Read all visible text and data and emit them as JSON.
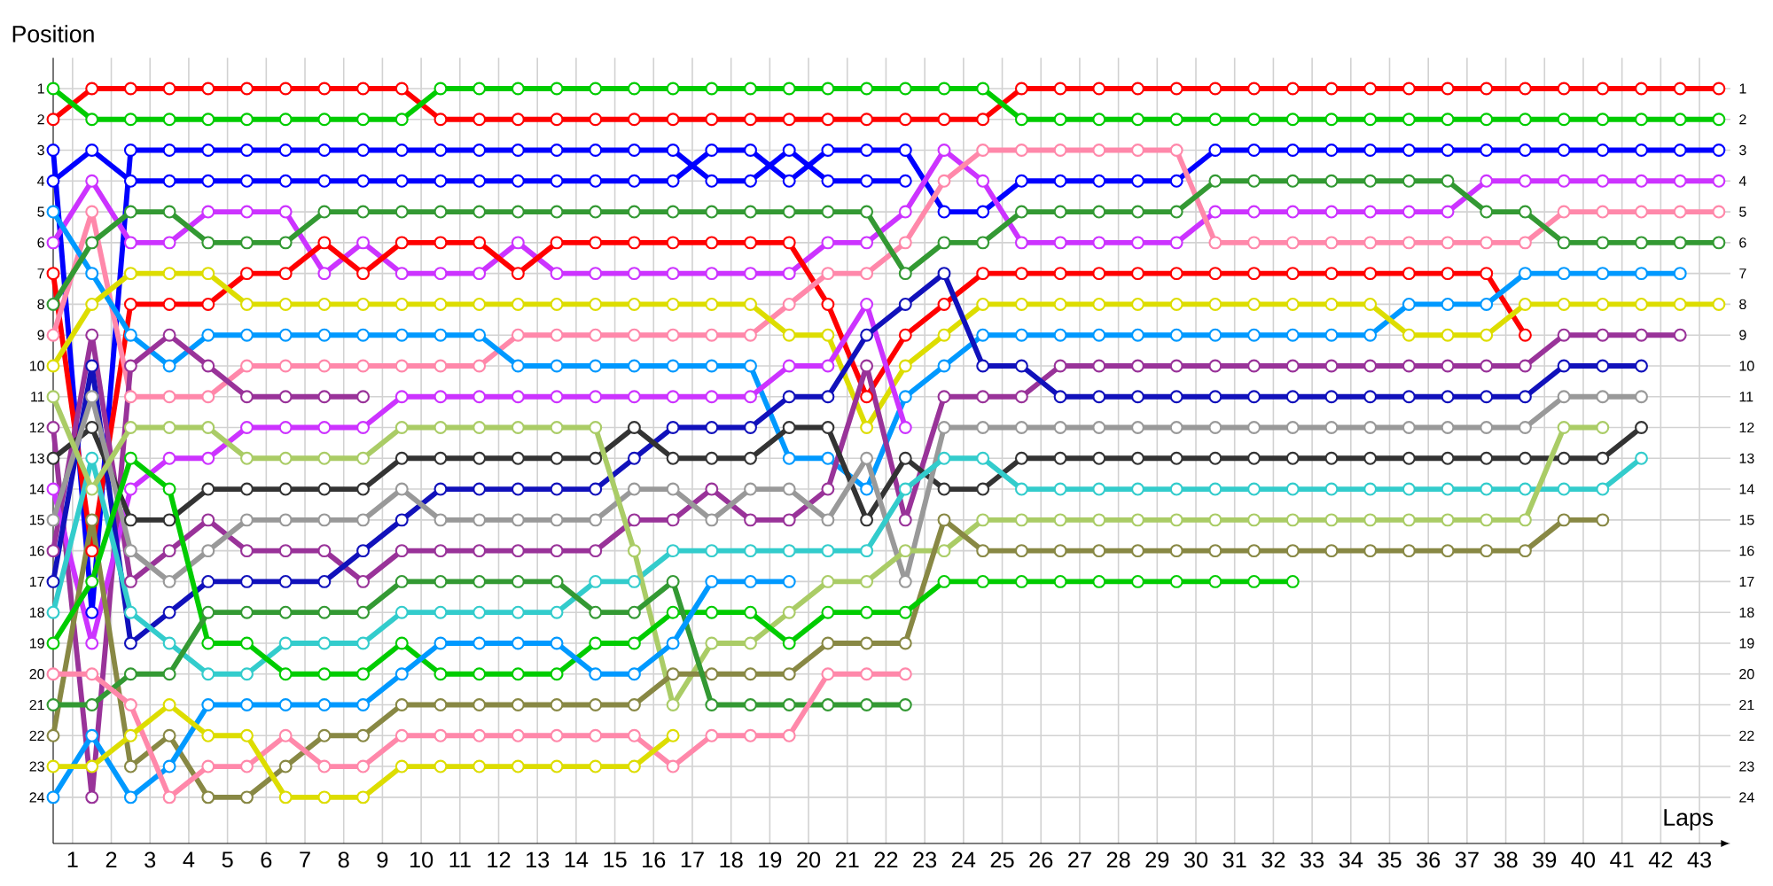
{
  "chart_data": {
    "type": "line",
    "xlabel": "Laps",
    "ylabel": "Position",
    "marker": "circle",
    "line_style": "solid",
    "grid": true,
    "x": [
      0.5,
      1.5,
      2.5,
      3.5,
      4.5,
      5.5,
      6.5,
      7.5,
      8.5,
      9.5,
      10.5,
      11.5,
      12.5,
      13.5,
      14.5,
      15.5,
      16.5,
      17.5,
      18.5,
      19.5,
      20.5,
      21.5,
      22.5,
      23.5,
      24.5,
      25.5,
      26.5,
      27.5,
      28.5,
      29.5,
      30.5,
      31.5,
      32.5,
      33.5,
      34.5,
      35.5,
      36.5,
      37.5,
      38.5,
      39.5,
      40.5,
      41.5,
      42.5,
      43.5
    ],
    "xlim": [
      0.5,
      43.8
    ],
    "xticks": [
      1,
      2,
      3,
      4,
      5,
      6,
      7,
      8,
      9,
      10,
      11,
      12,
      13,
      14,
      15,
      16,
      17,
      18,
      19,
      20,
      21,
      22,
      23,
      24,
      25,
      26,
      27,
      28,
      29,
      30,
      31,
      32,
      33,
      34,
      35,
      36,
      37,
      38,
      39,
      40,
      41,
      42,
      43
    ],
    "ylim": [
      25.5,
      0
    ],
    "yticks": [
      1,
      2,
      3,
      4,
      5,
      6,
      7,
      8,
      9,
      10,
      11,
      12,
      13,
      14,
      15,
      16,
      17,
      18,
      19,
      20,
      21,
      22,
      23,
      24
    ],
    "y2lim": [
      25.5,
      0
    ],
    "y2ticks": [
      1,
      2,
      3,
      4,
      5,
      6,
      7,
      8,
      9,
      10,
      11,
      12,
      13,
      14,
      15,
      16,
      17,
      18,
      19,
      20,
      21,
      22,
      23,
      24
    ],
    "series": [
      {
        "color": "#ff0000",
        "values": [
          2,
          1,
          1,
          1,
          1,
          1,
          1,
          1,
          1,
          1,
          2,
          2,
          2,
          2,
          2,
          2,
          2,
          2,
          2,
          2,
          2,
          2,
          2,
          2,
          2,
          1,
          1,
          1,
          1,
          1,
          1,
          1,
          1,
          1,
          1,
          1,
          1,
          1,
          1,
          1,
          1,
          1,
          1,
          1
        ]
      },
      {
        "color": "#00cc00",
        "values": [
          1,
          2,
          2,
          2,
          2,
          2,
          2,
          2,
          2,
          2,
          1,
          1,
          1,
          1,
          1,
          1,
          1,
          1,
          1,
          1,
          1,
          1,
          1,
          1,
          1,
          2,
          2,
          2,
          2,
          2,
          2,
          2,
          2,
          2,
          2,
          2,
          2,
          2,
          2,
          2,
          2,
          2,
          2,
          2
        ]
      },
      {
        "color": "#0000ff",
        "values": [
          3,
          18,
          3,
          3,
          3,
          3,
          3,
          3,
          3,
          3,
          3,
          3,
          3,
          3,
          3,
          3,
          3,
          4,
          4,
          3,
          4,
          4,
          4,
          null,
          null,
          null,
          null,
          null,
          null,
          null,
          null,
          null,
          null,
          null,
          null,
          null,
          null,
          null,
          null,
          null,
          null,
          null,
          null,
          null
        ]
      },
      {
        "color": "#0000ff",
        "values": [
          4,
          3,
          4,
          4,
          4,
          4,
          4,
          4,
          4,
          4,
          4,
          4,
          4,
          4,
          4,
          4,
          4,
          3,
          3,
          4,
          3,
          3,
          3,
          5,
          5,
          4,
          4,
          4,
          4,
          4,
          3,
          3,
          3,
          3,
          3,
          3,
          3,
          3,
          3,
          3,
          3,
          3,
          3,
          3
        ]
      },
      {
        "color": "#cc33ff",
        "values": [
          6,
          4,
          6,
          6,
          5,
          5,
          5,
          7,
          6,
          7,
          7,
          7,
          6,
          7,
          7,
          7,
          7,
          7,
          7,
          7,
          6,
          6,
          5,
          3,
          4,
          6,
          6,
          6,
          6,
          6,
          5,
          5,
          5,
          5,
          5,
          5,
          5,
          4,
          4,
          4,
          4,
          4,
          4,
          4
        ]
      },
      {
        "color": "#ff0000",
        "values": [
          7,
          16,
          8,
          8,
          8,
          7,
          7,
          6,
          7,
          6,
          6,
          6,
          7,
          6,
          6,
          6,
          6,
          6,
          6,
          6,
          8,
          11,
          9,
          8,
          7,
          7,
          7,
          7,
          7,
          7,
          7,
          7,
          7,
          7,
          7,
          7,
          7,
          7,
          9,
          null,
          null,
          null,
          null,
          null
        ]
      },
      {
        "color": "#ff88aa",
        "values": [
          9,
          5,
          11,
          11,
          11,
          10,
          10,
          10,
          10,
          10,
          10,
          10,
          9,
          9,
          9,
          9,
          9,
          9,
          9,
          8,
          7,
          7,
          6,
          4,
          3,
          3,
          3,
          3,
          3,
          3,
          6,
          6,
          6,
          6,
          6,
          6,
          6,
          6,
          6,
          5,
          5,
          5,
          5,
          5
        ]
      },
      {
        "color": "#0099ff",
        "values": [
          5,
          7,
          9,
          10,
          9,
          9,
          9,
          9,
          9,
          9,
          9,
          9,
          10,
          10,
          10,
          10,
          10,
          10,
          10,
          13,
          13,
          14,
          11,
          10,
          9,
          9,
          9,
          9,
          9,
          9,
          9,
          9,
          9,
          9,
          9,
          8,
          8,
          8,
          7,
          7,
          7,
          7,
          7,
          null
        ]
      },
      {
        "color": "#dddd00",
        "values": [
          10,
          8,
          7,
          7,
          7,
          8,
          8,
          8,
          8,
          8,
          8,
          8,
          8,
          8,
          8,
          8,
          8,
          8,
          8,
          9,
          9,
          12,
          10,
          9,
          8,
          8,
          8,
          8,
          8,
          8,
          8,
          8,
          8,
          8,
          8,
          9,
          9,
          9,
          8,
          8,
          8,
          8,
          8,
          8
        ]
      },
      {
        "color": "#339933",
        "values": [
          8,
          6,
          5,
          5,
          6,
          6,
          6,
          5,
          5,
          5,
          5,
          5,
          5,
          5,
          5,
          5,
          5,
          5,
          5,
          5,
          5,
          5,
          7,
          6,
          6,
          5,
          5,
          5,
          5,
          5,
          4,
          4,
          4,
          4,
          4,
          4,
          4,
          5,
          5,
          6,
          6,
          6,
          6,
          6
        ]
      },
      {
        "color": "#993399",
        "values": [
          16,
          9,
          17,
          16,
          15,
          16,
          16,
          16,
          17,
          16,
          16,
          16,
          16,
          16,
          16,
          15,
          15,
          14,
          15,
          15,
          14,
          10,
          15,
          11,
          11,
          11,
          10,
          10,
          10,
          10,
          10,
          10,
          10,
          10,
          10,
          10,
          10,
          10,
          10,
          9,
          9,
          9,
          9,
          null
        ]
      },
      {
        "color": "#993399",
        "values": [
          12,
          24,
          10,
          9,
          10,
          11,
          11,
          11,
          11,
          null,
          null,
          null,
          null,
          null,
          null,
          null,
          null,
          null,
          null,
          null,
          null,
          null,
          null,
          null,
          null,
          null,
          null,
          null,
          null,
          null,
          null,
          null,
          null,
          null,
          null,
          null,
          null,
          null,
          null,
          null,
          null,
          null,
          null,
          null
        ]
      },
      {
        "color": "#cc33ff",
        "values": [
          14,
          19,
          14,
          13,
          13,
          12,
          12,
          12,
          12,
          11,
          11,
          11,
          11,
          11,
          11,
          11,
          11,
          11,
          11,
          10,
          10,
          8,
          12,
          null,
          null,
          null,
          null,
          null,
          null,
          null,
          null,
          null,
          null,
          null,
          null,
          null,
          null,
          null,
          null,
          null,
          null,
          null,
          null,
          null
        ]
      },
      {
        "color": "#1111bb",
        "values": [
          17,
          10,
          19,
          18,
          17,
          17,
          17,
          17,
          16,
          15,
          14,
          14,
          14,
          14,
          14,
          13,
          12,
          12,
          12,
          11,
          11,
          9,
          8,
          7,
          10,
          10,
          11,
          11,
          11,
          11,
          11,
          11,
          11,
          11,
          11,
          11,
          11,
          11,
          11,
          10,
          10,
          10,
          null,
          null
        ]
      },
      {
        "color": "#333333",
        "values": [
          13,
          12,
          15,
          15,
          14,
          14,
          14,
          14,
          14,
          13,
          13,
          13,
          13,
          13,
          13,
          12,
          13,
          13,
          13,
          12,
          12,
          15,
          13,
          14,
          14,
          13,
          13,
          13,
          13,
          13,
          13,
          13,
          13,
          13,
          13,
          13,
          13,
          13,
          13,
          13,
          13,
          12,
          null,
          null
        ]
      },
      {
        "color": "#999999",
        "values": [
          15,
          11,
          16,
          17,
          16,
          15,
          15,
          15,
          15,
          14,
          15,
          15,
          15,
          15,
          15,
          14,
          14,
          15,
          14,
          14,
          15,
          13,
          17,
          12,
          12,
          12,
          12,
          12,
          12,
          12,
          12,
          12,
          12,
          12,
          12,
          12,
          12,
          12,
          12,
          11,
          11,
          11,
          null,
          null
        ]
      },
      {
        "color": "#33cccc",
        "values": [
          18,
          13,
          18,
          19,
          20,
          20,
          19,
          19,
          19,
          18,
          18,
          18,
          18,
          18,
          17,
          17,
          16,
          16,
          16,
          16,
          16,
          16,
          14,
          13,
          13,
          14,
          14,
          14,
          14,
          14,
          14,
          14,
          14,
          14,
          14,
          14,
          14,
          14,
          14,
          14,
          14,
          13,
          null,
          null
        ]
      },
      {
        "color": "#aacc66",
        "values": [
          11,
          14,
          12,
          12,
          12,
          13,
          13,
          13,
          13,
          12,
          12,
          12,
          12,
          12,
          12,
          16,
          21,
          19,
          19,
          18,
          17,
          17,
          16,
          16,
          15,
          15,
          15,
          15,
          15,
          15,
          15,
          15,
          15,
          15,
          15,
          15,
          15,
          15,
          15,
          12,
          12,
          null,
          null,
          null
        ]
      },
      {
        "color": "#888844",
        "values": [
          22,
          15,
          23,
          22,
          24,
          24,
          23,
          22,
          22,
          21,
          21,
          21,
          21,
          21,
          21,
          21,
          20,
          20,
          20,
          20,
          19,
          19,
          19,
          15,
          16,
          16,
          16,
          16,
          16,
          16,
          16,
          16,
          16,
          16,
          16,
          16,
          16,
          16,
          16,
          15,
          15,
          null,
          null,
          null
        ]
      },
      {
        "color": "#00cc00",
        "values": [
          19,
          17,
          13,
          14,
          19,
          19,
          20,
          20,
          20,
          19,
          20,
          20,
          20,
          20,
          19,
          19,
          18,
          18,
          18,
          19,
          18,
          18,
          18,
          17,
          17,
          17,
          17,
          17,
          17,
          17,
          17,
          17,
          17,
          null,
          null,
          null,
          null,
          null,
          null,
          null,
          null,
          null,
          null,
          null
        ]
      },
      {
        "color": "#339933",
        "values": [
          21,
          21,
          20,
          20,
          18,
          18,
          18,
          18,
          18,
          17,
          17,
          17,
          17,
          17,
          18,
          18,
          17,
          21,
          21,
          21,
          21,
          21,
          21,
          null,
          null,
          null,
          null,
          null,
          null,
          null,
          null,
          null,
          null,
          null,
          null,
          null,
          null,
          null,
          null,
          null,
          null,
          null,
          null,
          null
        ]
      },
      {
        "color": "#0099ff",
        "values": [
          24,
          22,
          24,
          23,
          21,
          21,
          21,
          21,
          21,
          20,
          19,
          19,
          19,
          19,
          20,
          20,
          19,
          17,
          17,
          17,
          null,
          null,
          null,
          null,
          null,
          null,
          null,
          null,
          null,
          null,
          null,
          null,
          null,
          null,
          null,
          null,
          null,
          null,
          null,
          null,
          null,
          null,
          null,
          null
        ]
      },
      {
        "color": "#ff88aa",
        "values": [
          20,
          20,
          21,
          24,
          23,
          23,
          22,
          23,
          23,
          22,
          22,
          22,
          22,
          22,
          22,
          22,
          23,
          22,
          22,
          22,
          20,
          20,
          20,
          null,
          null,
          null,
          null,
          null,
          null,
          null,
          null,
          null,
          null,
          null,
          null,
          null,
          null,
          null,
          null,
          null,
          null,
          null,
          null,
          null
        ]
      },
      {
        "color": "#dddd00",
        "values": [
          23,
          23,
          22,
          21,
          22,
          22,
          24,
          24,
          24,
          23,
          23,
          23,
          23,
          23,
          23,
          23,
          22,
          null,
          null,
          null,
          null,
          null,
          null,
          null,
          null,
          null,
          null,
          null,
          null,
          null,
          null,
          null,
          null,
          null,
          null,
          null,
          null,
          null,
          null,
          null,
          null,
          null,
          null,
          null
        ]
      }
    ]
  }
}
